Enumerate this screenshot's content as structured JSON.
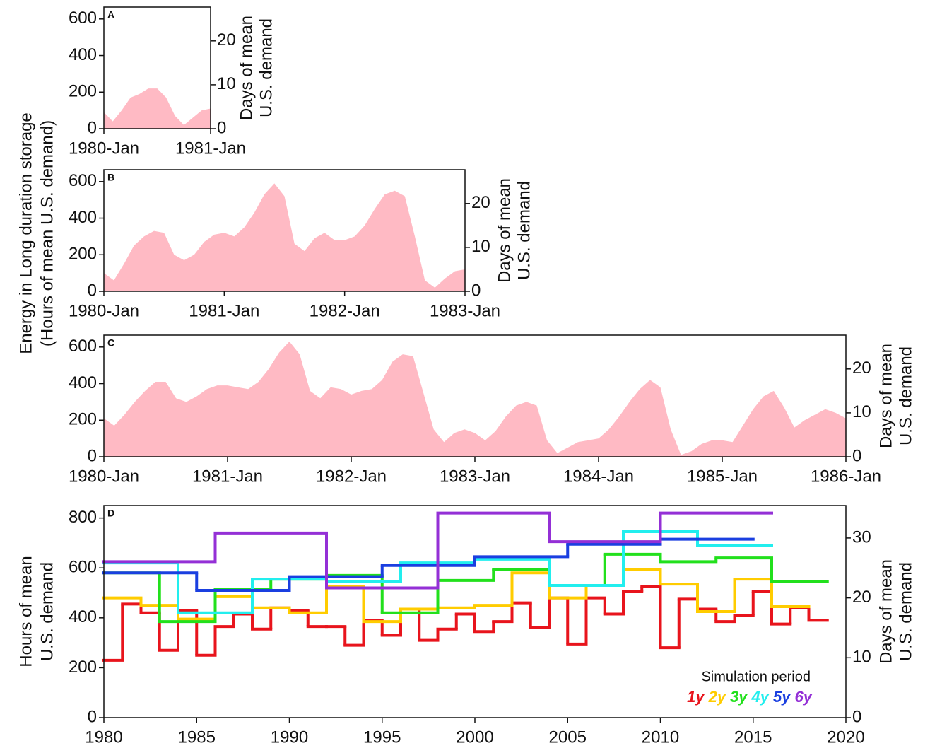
{
  "ylabel": [
    "Energy in Long duration storage",
    "(Hours of mean U.S. demand)"
  ],
  "chart_data": [
    {
      "type": "area",
      "panel_label": "A",
      "color": "#ffbac4",
      "x": [
        "1980-Jan",
        "1980-Feb",
        "1980-Mar",
        "1980-Apr",
        "1980-May",
        "1980-Jun",
        "1980-Jul",
        "1980-Aug",
        "1980-Sep",
        "1980-Oct",
        "1980-Nov",
        "1980-Dec",
        "1981-Jan"
      ],
      "values": [
        90,
        40,
        100,
        170,
        190,
        220,
        220,
        170,
        70,
        20,
        60,
        100,
        110
      ],
      "xlim": [
        "1980-Jan",
        "1981-Jan"
      ],
      "xticks": [
        "1980-Jan",
        "1981-Jan"
      ],
      "ylim": [
        0,
        665
      ],
      "yticks": [
        0,
        200,
        400,
        600
      ],
      "y2lim": [
        0,
        27.7
      ],
      "y2ticks": [
        0,
        10,
        20
      ],
      "y2label": [
        "Days of mean",
        "U.S. demand"
      ]
    },
    {
      "type": "area",
      "panel_label": "B",
      "color": "#ffbac4",
      "x": [
        "1980-Jan",
        "1980-Feb",
        "1980-Mar",
        "1980-Apr",
        "1980-May",
        "1980-Jun",
        "1980-Jul",
        "1980-Aug",
        "1980-Sep",
        "1980-Oct",
        "1980-Nov",
        "1980-Dec",
        "1981-Jan",
        "1981-Feb",
        "1981-Mar",
        "1981-Apr",
        "1981-May",
        "1981-Jun",
        "1981-Jul",
        "1981-Aug",
        "1981-Sep",
        "1981-Oct",
        "1981-Nov",
        "1981-Dec",
        "1982-Jan",
        "1982-Feb",
        "1982-Mar",
        "1982-Apr",
        "1982-May",
        "1982-Jun",
        "1982-Jul",
        "1982-Aug",
        "1982-Sep",
        "1982-Oct",
        "1982-Nov",
        "1982-Dec",
        "1983-Jan"
      ],
      "values": [
        100,
        60,
        150,
        250,
        300,
        330,
        320,
        200,
        170,
        200,
        270,
        310,
        320,
        300,
        350,
        430,
        530,
        590,
        520,
        260,
        220,
        290,
        320,
        280,
        280,
        300,
        360,
        450,
        530,
        550,
        520,
        300,
        60,
        20,
        70,
        110,
        120
      ],
      "xlim": [
        "1980-Jan",
        "1983-Jan"
      ],
      "xticks": [
        "1980-Jan",
        "1981-Jan",
        "1982-Jan",
        "1983-Jan"
      ],
      "ylim": [
        0,
        665
      ],
      "yticks": [
        0,
        200,
        400,
        600
      ],
      "y2lim": [
        0,
        27.7
      ],
      "y2ticks": [
        0,
        10,
        20
      ],
      "y2label": [
        "Days of mean",
        "U.S. demand"
      ]
    },
    {
      "type": "area",
      "panel_label": "C",
      "color": "#ffbac4",
      "x": [
        "1980-Jan",
        "1980-Feb",
        "1980-Mar",
        "1980-Apr",
        "1980-May",
        "1980-Jun",
        "1980-Jul",
        "1980-Aug",
        "1980-Sep",
        "1980-Oct",
        "1980-Nov",
        "1980-Dec",
        "1981-Jan",
        "1981-Feb",
        "1981-Mar",
        "1981-Apr",
        "1981-May",
        "1981-Jun",
        "1981-Jul",
        "1981-Aug",
        "1981-Sep",
        "1981-Oct",
        "1981-Nov",
        "1981-Dec",
        "1982-Jan",
        "1982-Feb",
        "1982-Mar",
        "1982-Apr",
        "1982-May",
        "1982-Jun",
        "1982-Jul",
        "1982-Aug",
        "1982-Sep",
        "1982-Oct",
        "1982-Nov",
        "1982-Dec",
        "1983-Jan",
        "1983-Feb",
        "1983-Mar",
        "1983-Apr",
        "1983-May",
        "1983-Jun",
        "1983-Jul",
        "1983-Aug",
        "1983-Sep",
        "1983-Oct",
        "1983-Nov",
        "1983-Dec",
        "1984-Jan",
        "1984-Feb",
        "1984-Mar",
        "1984-Apr",
        "1984-May",
        "1984-Jun",
        "1984-Jul",
        "1984-Aug",
        "1984-Sep",
        "1984-Oct",
        "1984-Nov",
        "1984-Dec",
        "1985-Jan",
        "1985-Feb",
        "1985-Mar",
        "1985-Apr",
        "1985-May",
        "1985-Jun",
        "1985-Jul",
        "1985-Aug",
        "1985-Sep",
        "1985-Oct",
        "1985-Nov",
        "1985-Dec",
        "1986-Jan"
      ],
      "values": [
        210,
        170,
        230,
        300,
        360,
        410,
        410,
        320,
        300,
        330,
        370,
        390,
        390,
        380,
        370,
        410,
        480,
        570,
        630,
        560,
        360,
        320,
        380,
        370,
        340,
        360,
        370,
        420,
        520,
        560,
        550,
        350,
        150,
        80,
        130,
        150,
        130,
        90,
        140,
        220,
        280,
        300,
        280,
        90,
        20,
        50,
        80,
        90,
        100,
        150,
        220,
        300,
        370,
        420,
        380,
        150,
        10,
        30,
        70,
        90,
        90,
        80,
        170,
        260,
        330,
        360,
        270,
        160,
        200,
        230,
        260,
        240,
        210
      ],
      "xlim": [
        "1980-Jan",
        "1986-Jan"
      ],
      "xticks": [
        "1980-Jan",
        "1981-Jan",
        "1982-Jan",
        "1983-Jan",
        "1984-Jan",
        "1985-Jan",
        "1986-Jan"
      ],
      "ylim": [
        0,
        665
      ],
      "yticks": [
        0,
        200,
        400,
        600
      ],
      "y2lim": [
        0,
        27.7
      ],
      "y2ticks": [
        0,
        10,
        20
      ],
      "y2label": [
        "Days of mean",
        "U.S. demand"
      ]
    },
    {
      "type": "step",
      "panel_label": "D",
      "ylabel": [
        "Hours of mean",
        "U.S. demand"
      ],
      "y2label": [
        "Days of mean",
        "U.S. demand"
      ],
      "xlim": [
        1980,
        2020
      ],
      "xticks": [
        1980,
        1985,
        1990,
        1995,
        2000,
        2005,
        2010,
        2015,
        2020
      ],
      "ylim": [
        0,
        850
      ],
      "yticks": [
        0,
        200,
        400,
        600,
        800
      ],
      "y2lim": [
        0,
        35.42
      ],
      "y2ticks": [
        0,
        10,
        20,
        30
      ],
      "legend_title": "Simulation period",
      "legend_loc": "lower right",
      "series": [
        {
          "name": "1y",
          "color": "#e8141c",
          "bins": [
            1980,
            1981,
            1982,
            1983,
            1984,
            1985,
            1986,
            1987,
            1988,
            1989,
            1990,
            1991,
            1992,
            1993,
            1994,
            1995,
            1996,
            1997,
            1998,
            1999,
            2000,
            2001,
            2002,
            2003,
            2004,
            2005,
            2006,
            2007,
            2008,
            2009,
            2010,
            2011,
            2012,
            2013,
            2014,
            2015,
            2016,
            2017,
            2018,
            2019
          ],
          "values": [
            230,
            455,
            420,
            270,
            430,
            250,
            365,
            415,
            355,
            440,
            430,
            365,
            365,
            290,
            390,
            330,
            435,
            310,
            355,
            415,
            345,
            385,
            460,
            360,
            480,
            295,
            480,
            415,
            505,
            525,
            280,
            475,
            435,
            385,
            410,
            505,
            375,
            440,
            390
          ]
        },
        {
          "name": "2y",
          "color": "#ffcc00",
          "bins": [
            1980,
            1982,
            1984,
            1986,
            1988,
            1990,
            1992,
            1994,
            1996,
            1998,
            2000,
            2002,
            2004,
            2006,
            2008,
            2010,
            2012,
            2014,
            2016,
            2018
          ],
          "values": [
            480,
            450,
            395,
            485,
            440,
            420,
            525,
            385,
            435,
            440,
            450,
            580,
            480,
            530,
            595,
            535,
            425,
            555,
            445
          ]
        },
        {
          "name": "3y",
          "color": "#22e01c",
          "bins": [
            1980,
            1983,
            1986,
            1989,
            1992,
            1995,
            1998,
            2001,
            2004,
            2007,
            2010,
            2013,
            2016,
            2019
          ],
          "values": [
            580,
            385,
            515,
            555,
            570,
            420,
            550,
            595,
            530,
            655,
            625,
            640,
            545
          ]
        },
        {
          "name": "4y",
          "color": "#22eeee",
          "bins": [
            1980,
            1984,
            1988,
            1992,
            1996,
            2000,
            2004,
            2008,
            2012,
            2016
          ],
          "values": [
            620,
            420,
            555,
            545,
            620,
            635,
            530,
            745,
            690
          ]
        },
        {
          "name": "5y",
          "color": "#1a3fe0",
          "bins": [
            1980,
            1985,
            1990,
            1995,
            2000,
            2005,
            2010,
            2015
          ],
          "values": [
            580,
            510,
            565,
            610,
            645,
            695,
            715
          ]
        },
        {
          "name": "6y",
          "color": "#9430d6",
          "bins": [
            1980,
            1986,
            1992,
            1998,
            2004,
            2010,
            2016
          ],
          "values": [
            625,
            740,
            520,
            820,
            705,
            820
          ]
        }
      ]
    }
  ]
}
